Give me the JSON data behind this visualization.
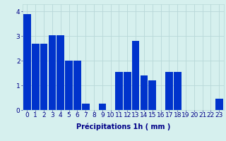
{
  "categories": [
    0,
    1,
    2,
    3,
    4,
    5,
    6,
    7,
    8,
    9,
    10,
    11,
    12,
    13,
    14,
    15,
    16,
    17,
    18,
    19,
    20,
    21,
    22,
    23
  ],
  "values": [
    3.9,
    2.7,
    2.7,
    3.05,
    3.05,
    2.0,
    2.0,
    0.25,
    0.0,
    0.25,
    0.0,
    1.55,
    1.55,
    2.8,
    1.4,
    1.2,
    0.0,
    1.55,
    1.55,
    0.0,
    0.0,
    0.0,
    0.0,
    0.45
  ],
  "bar_color": "#0033cc",
  "background_color": "#d6f0ee",
  "grid_color": "#b8d8d8",
  "xlabel": "Précipitations 1h ( mm )",
  "ylim": [
    0,
    4.3
  ],
  "yticks": [
    0,
    1,
    2,
    3,
    4
  ],
  "tick_color": "#000088",
  "xlabel_fontsize": 7,
  "tick_fontsize": 6.5,
  "fig_width": 3.2,
  "fig_height": 2.0,
  "dpi": 100
}
